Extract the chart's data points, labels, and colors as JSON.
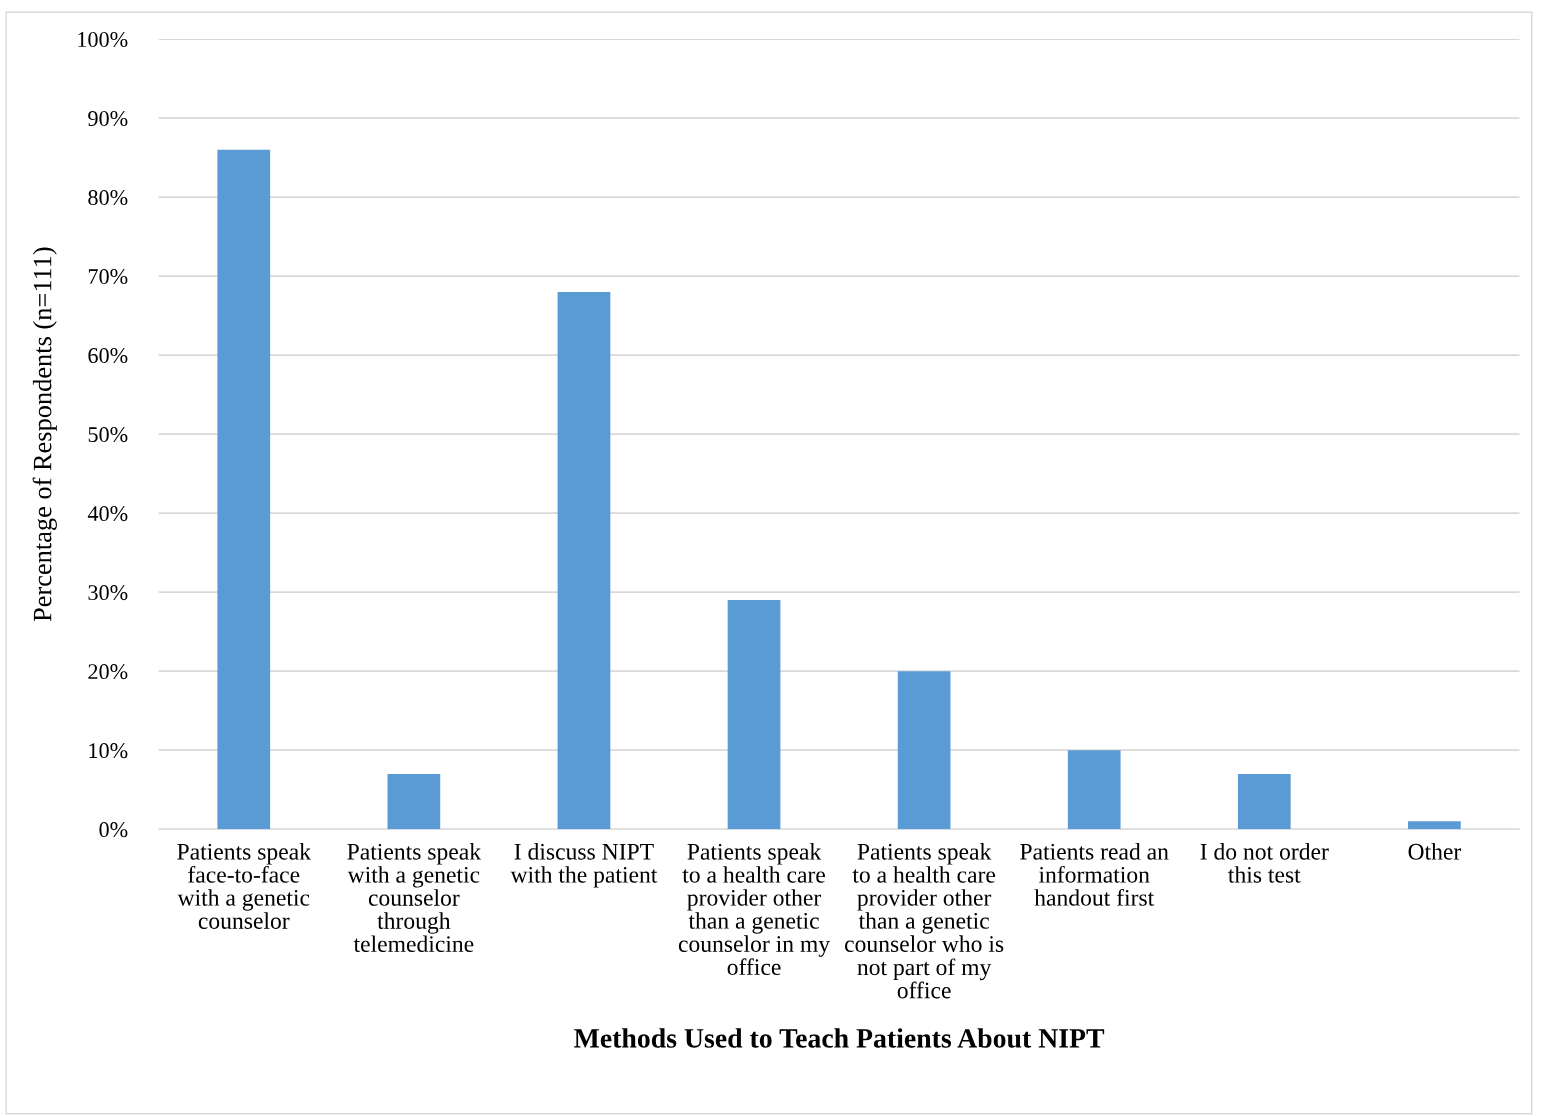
{
  "chart_data": {
    "type": "bar",
    "xlabel": "Methods Used to Teach Patients About NIPT",
    "ylabel": "Percentage of Respondents (n=111)",
    "categories": [
      "Patients speak face-to-face with a genetic counselor",
      "Patients speak with a genetic counselor through telemedicine",
      "I discuss NIPT with the patient",
      "Patients speak to a health care provider other than a genetic counselor in my office",
      "Patients speak to a health care provider other than a genetic counselor who is not part of my office",
      "Patients read an information handout first",
      "I do not order this test",
      "Other"
    ],
    "values": [
      86,
      7,
      68,
      29,
      20,
      10,
      7,
      1
    ],
    "color": "#5b9bd5",
    "ylim": [
      0,
      100
    ],
    "yticks": [
      {
        "value": 0,
        "label": "0%"
      },
      {
        "value": 10,
        "label": "10%"
      },
      {
        "value": 20,
        "label": "20%"
      },
      {
        "value": 30,
        "label": "30%"
      },
      {
        "value": 40,
        "label": "40%"
      },
      {
        "value": 50,
        "label": "50%"
      },
      {
        "value": 60,
        "label": "60%"
      },
      {
        "value": 70,
        "label": "70%"
      },
      {
        "value": 80,
        "label": "80%"
      },
      {
        "value": 90,
        "label": "90%"
      },
      {
        "value": 100,
        "label": "100%"
      }
    ],
    "grid": "y",
    "legend": false
  }
}
